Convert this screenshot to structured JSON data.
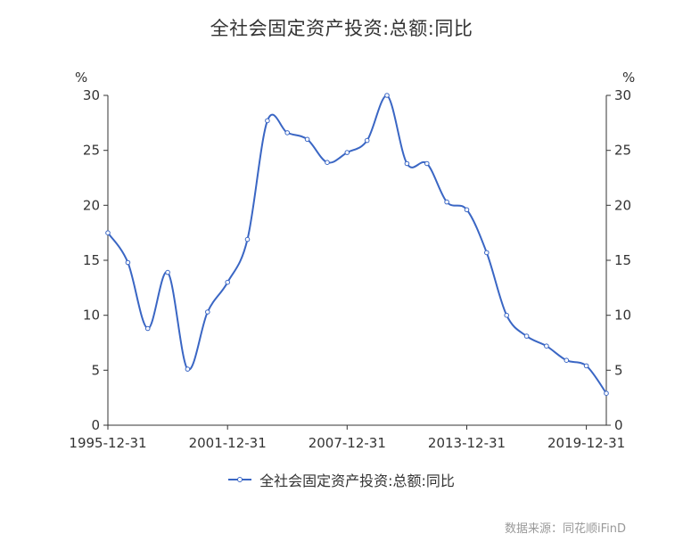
{
  "chart_data": {
    "type": "line",
    "title": "全社会固定资产投资:总额:同比",
    "series_name": "全社会固定资产投资:总额:同比",
    "y_unit": "%",
    "ylim": [
      0,
      30
    ],
    "y_ticks": [
      0,
      5,
      10,
      15,
      20,
      25,
      30
    ],
    "x_tick_labels": [
      "1995-12-31",
      "2001-12-31",
      "2007-12-31",
      "2013-12-31",
      "2019-12-31"
    ],
    "x": [
      "1995-12-31",
      "1996-12-31",
      "1997-12-31",
      "1998-12-31",
      "1999-12-31",
      "2000-12-31",
      "2001-12-31",
      "2002-12-31",
      "2003-12-31",
      "2004-12-31",
      "2005-12-31",
      "2006-12-31",
      "2007-12-31",
      "2008-12-31",
      "2009-12-31",
      "2010-12-31",
      "2011-12-31",
      "2012-12-31",
      "2013-12-31",
      "2014-12-31",
      "2015-12-31",
      "2016-12-31",
      "2017-12-31",
      "2018-12-31",
      "2019-12-31",
      "2020-12-31"
    ],
    "values": [
      17.5,
      14.8,
      8.8,
      13.9,
      5.1,
      10.3,
      13.0,
      16.9,
      27.7,
      26.6,
      26.0,
      23.9,
      24.8,
      25.9,
      30.0,
      23.8,
      23.8,
      20.3,
      19.6,
      15.7,
      10.0,
      8.1,
      7.2,
      5.9,
      5.4,
      2.9
    ],
    "line_color": "#3a66c4",
    "axis_color": "#333333",
    "tick_label_color": "#333333",
    "marker": "open-circle",
    "grid": false,
    "legend_position": "bottom",
    "source": "数据来源：同花顺iFinD"
  }
}
